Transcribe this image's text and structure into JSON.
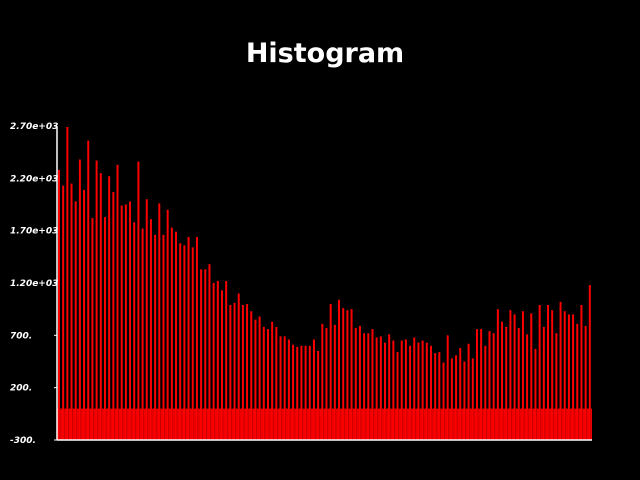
{
  "chart_data": {
    "type": "bar",
    "title": "Histogram",
    "xlabel": "",
    "ylabel": "",
    "ylim": [
      -300,
      2700
    ],
    "y_ticks": [
      {
        "value": 2700,
        "label": "2.70e+03"
      },
      {
        "value": 2200,
        "label": "2.20e+03"
      },
      {
        "value": 1700,
        "label": "1.70e+03"
      },
      {
        "value": 1200,
        "label": "1.20e+03"
      },
      {
        "value": 700,
        "label": "700."
      },
      {
        "value": 200,
        "label": "200."
      },
      {
        "value": -300,
        "label": "-300."
      }
    ],
    "baseline_min": -300,
    "colors": {
      "bar": "#ff0000",
      "baseline": "#ee0000",
      "axis": "#ffffff",
      "background": "#000000"
    },
    "values": [
      2280,
      2130,
      2690,
      2150,
      1980,
      2380,
      2090,
      2560,
      1820,
      2370,
      2250,
      1830,
      2220,
      2070,
      2330,
      1940,
      1950,
      1980,
      1780,
      2360,
      1720,
      2000,
      1810,
      1660,
      1960,
      1660,
      1900,
      1730,
      1690,
      1580,
      1560,
      1640,
      1540,
      1640,
      1330,
      1330,
      1380,
      1200,
      1220,
      1130,
      1220,
      990,
      1010,
      1100,
      990,
      1000,
      930,
      850,
      880,
      780,
      760,
      830,
      780,
      690,
      690,
      660,
      610,
      590,
      600,
      600,
      600,
      660,
      550,
      810,
      770,
      1000,
      800,
      1040,
      960,
      940,
      950,
      770,
      790,
      720,
      720,
      760,
      680,
      690,
      630,
      710,
      650,
      540,
      650,
      660,
      600,
      680,
      630,
      650,
      630,
      600,
      530,
      540,
      440,
      700,
      480,
      510,
      580,
      450,
      620,
      480,
      760,
      760,
      600,
      740,
      720,
      950,
      830,
      780,
      940,
      900,
      770,
      930,
      710,
      910,
      570,
      990,
      780,
      990,
      940,
      720,
      1020,
      930,
      900,
      900,
      810,
      990,
      790,
      1180
    ]
  }
}
